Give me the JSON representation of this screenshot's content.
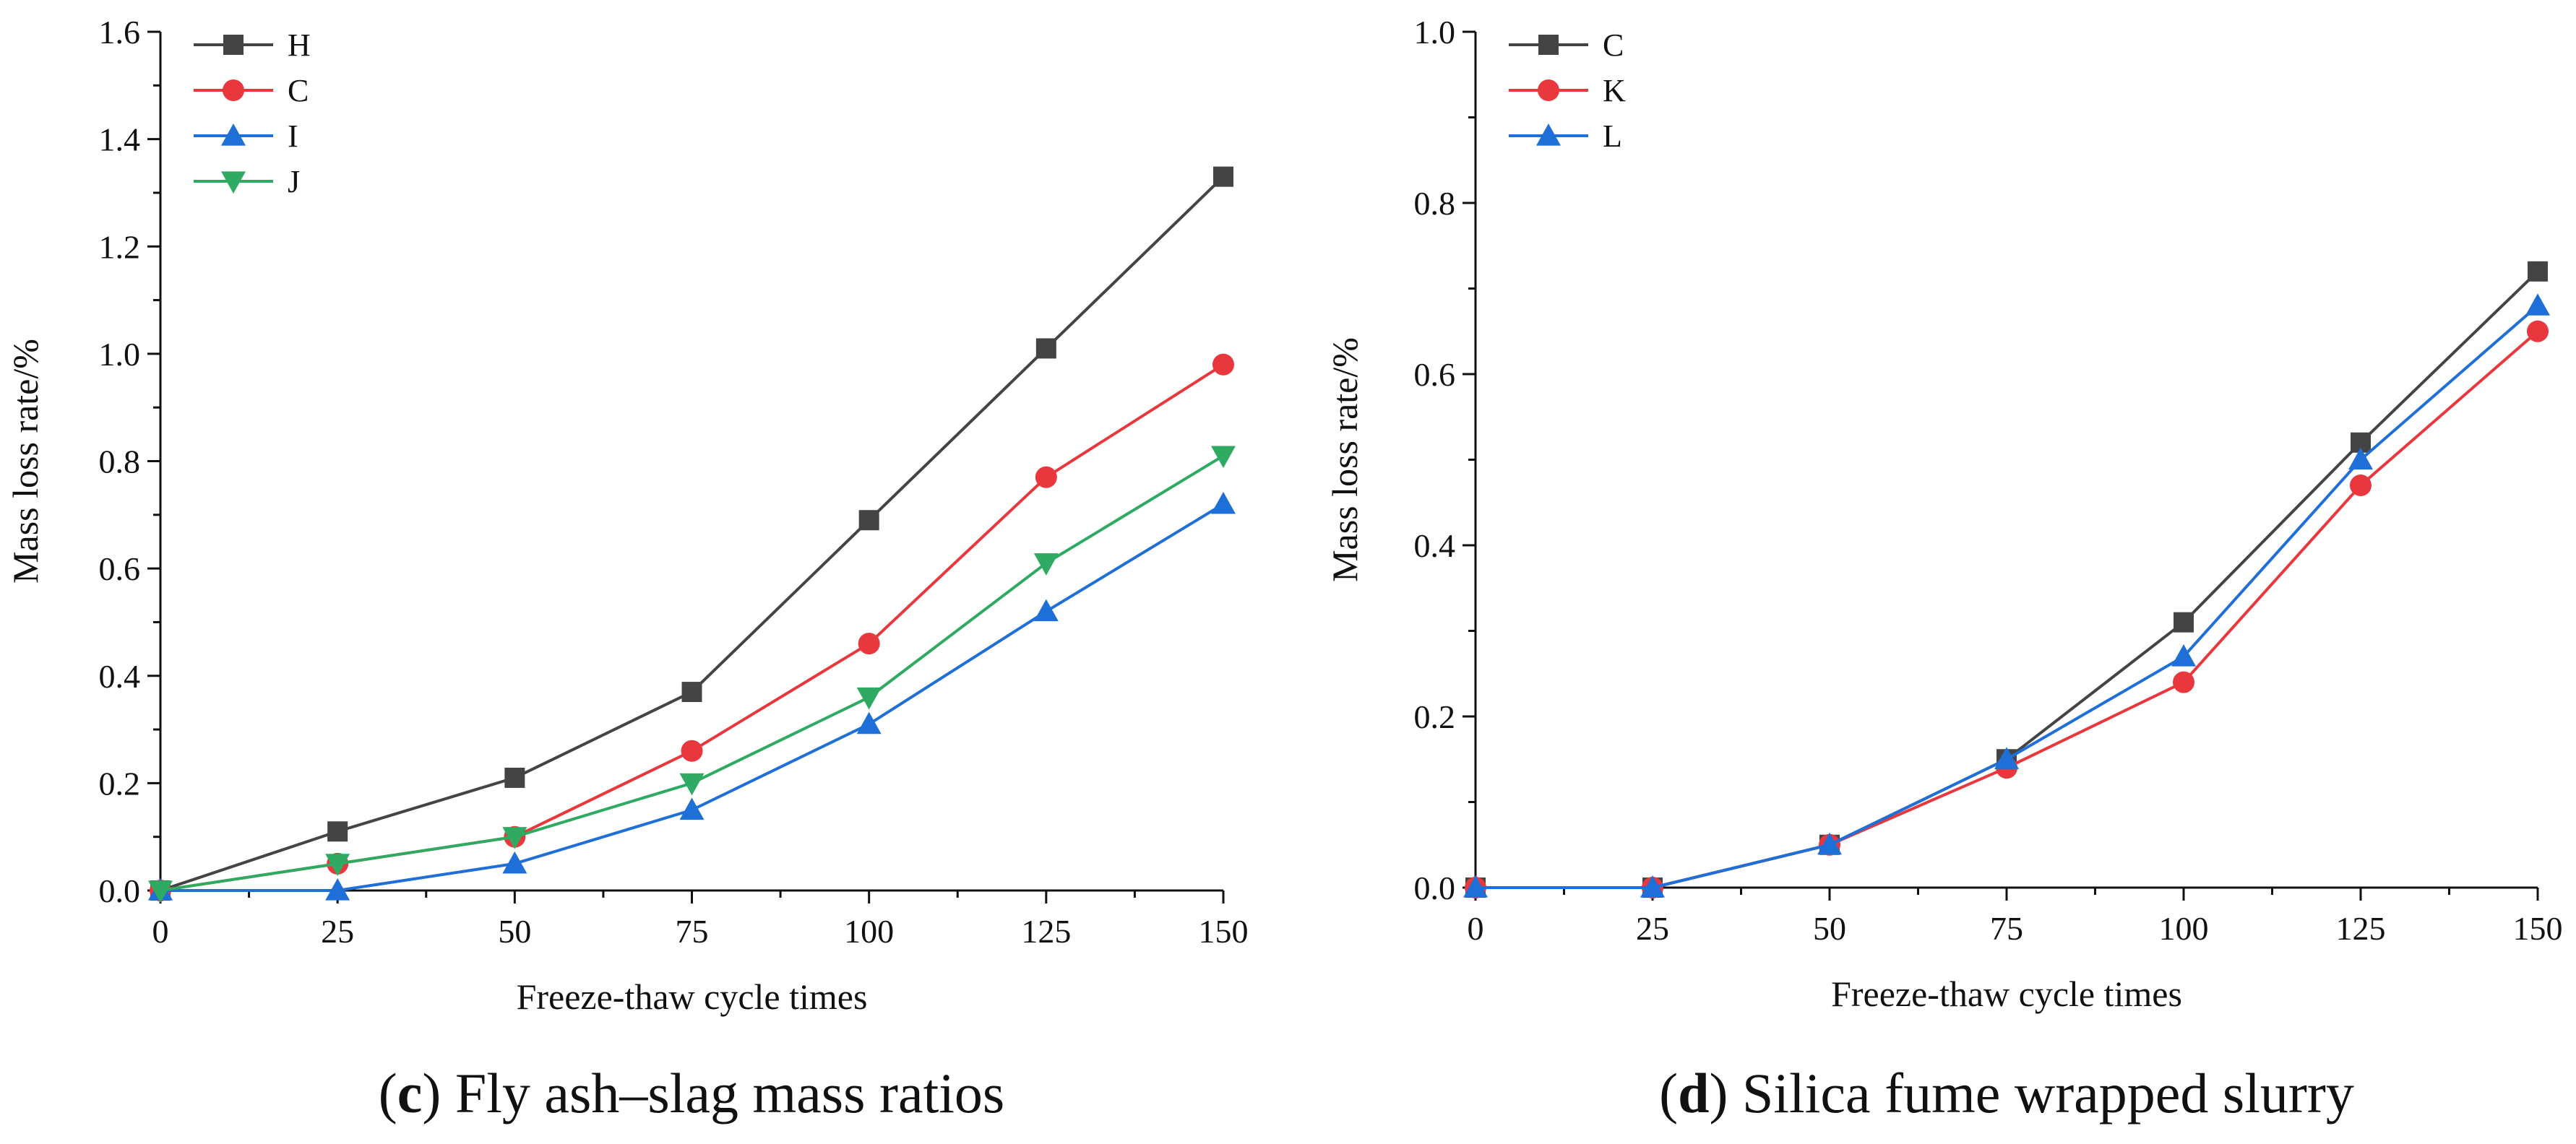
{
  "chart_data": [
    {
      "type": "line",
      "caption_letter": "c",
      "caption_text": "Fly ash–slag mass ratios",
      "xlabel": "Freeze-thaw cycle times",
      "ylabel": "Mass loss rate/%",
      "x": [
        0,
        25,
        50,
        75,
        100,
        125,
        150
      ],
      "xlim": [
        0,
        150
      ],
      "ylim": [
        0,
        1.6
      ],
      "xticks": [
        "0",
        "25",
        "50",
        "75",
        "100",
        "125",
        "150"
      ],
      "xtick_values": [
        0,
        25,
        50,
        75,
        100,
        125,
        150
      ],
      "yticks": [
        "0.0",
        "0.2",
        "0.4",
        "0.6",
        "0.8",
        "1.0",
        "1.2",
        "1.4",
        "1.6"
      ],
      "ytick_values": [
        0,
        0.2,
        0.4,
        0.6,
        0.8,
        1.0,
        1.2,
        1.4,
        1.6
      ],
      "legend_position": "top-left",
      "series": [
        {
          "name": "H",
          "color": "#444444",
          "marker": "square",
          "values": [
            0,
            0.11,
            0.21,
            0.37,
            0.69,
            1.01,
            1.33
          ]
        },
        {
          "name": "C",
          "color": "#e8383d",
          "marker": "circle",
          "values": [
            0,
            0.05,
            0.1,
            0.26,
            0.46,
            0.77,
            0.98
          ]
        },
        {
          "name": "I",
          "color": "#1f6fd9",
          "marker": "triangle-up",
          "values": [
            0,
            0,
            0.05,
            0.15,
            0.31,
            0.52,
            0.72
          ]
        },
        {
          "name": "J",
          "color": "#2faa62",
          "marker": "triangle-down",
          "values": [
            0,
            0.05,
            0.1,
            0.2,
            0.36,
            0.61,
            0.81
          ]
        }
      ]
    },
    {
      "type": "line",
      "caption_letter": "d",
      "caption_text": "Silica fume wrapped slurry",
      "xlabel": "Freeze-thaw cycle times",
      "ylabel": "Mass loss rate/%",
      "x": [
        0,
        25,
        50,
        75,
        100,
        125,
        150
      ],
      "xlim": [
        0,
        150
      ],
      "ylim": [
        0,
        1.0
      ],
      "xticks": [
        "0",
        "25",
        "50",
        "75",
        "100",
        "125",
        "150"
      ],
      "xtick_values": [
        0,
        25,
        50,
        75,
        100,
        125,
        150
      ],
      "yticks": [
        "0.0",
        "0.2",
        "0.4",
        "0.6",
        "0.8",
        "1.0"
      ],
      "ytick_values": [
        0,
        0.2,
        0.4,
        0.6,
        0.8,
        1.0
      ],
      "legend_position": "top-left",
      "series": [
        {
          "name": "C",
          "color": "#444444",
          "marker": "square",
          "values": [
            0,
            0,
            0.05,
            0.15,
            0.31,
            0.52,
            0.72
          ]
        },
        {
          "name": "K",
          "color": "#e8383d",
          "marker": "circle",
          "values": [
            0,
            0,
            0.05,
            0.14,
            0.24,
            0.47,
            0.65
          ]
        },
        {
          "name": "L",
          "color": "#1f6fd9",
          "marker": "triangle-up",
          "values": [
            0,
            0,
            0.05,
            0.15,
            0.27,
            0.5,
            0.68
          ]
        }
      ]
    }
  ]
}
